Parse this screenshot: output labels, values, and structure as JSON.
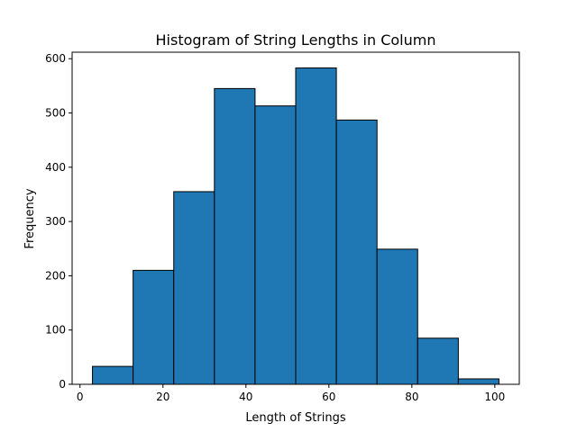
{
  "chart_data": {
    "type": "bar",
    "title": "Histogram of String Lengths in Column",
    "xlabel": "Length of Strings",
    "ylabel": "Frequency",
    "bin_edges": [
      3.0,
      12.8,
      22.6,
      32.4,
      42.2,
      52.0,
      61.8,
      71.6,
      81.4,
      91.2,
      101.0
    ],
    "values": [
      33,
      210,
      355,
      545,
      513,
      583,
      487,
      249,
      85,
      10
    ],
    "xlim": [
      -1.9,
      105.9
    ],
    "ylim": [
      0,
      612
    ],
    "x_ticks": [
      0,
      20,
      40,
      60,
      80,
      100
    ],
    "y_ticks": [
      0,
      100,
      200,
      300,
      400,
      500,
      600
    ],
    "grid": false,
    "bar_color": "#1f77b4",
    "edge_color": "#000000"
  }
}
